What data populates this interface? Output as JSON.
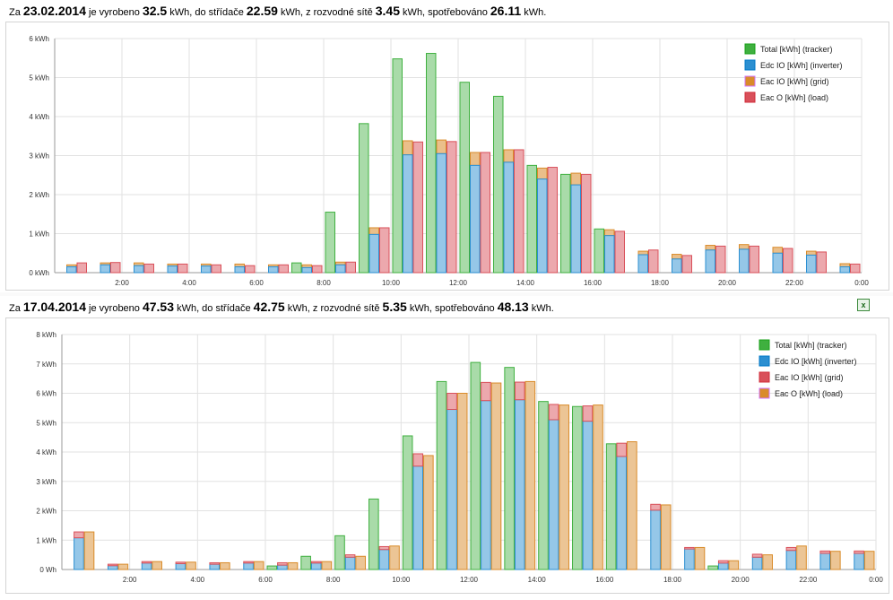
{
  "summary1": {
    "prefix": "Za ",
    "date": "23.02.2014",
    "t1": " je vyrobeno ",
    "produced": "32.5",
    "t2": " kWh, do střídače ",
    "inverter": "22.59",
    "t3": " kWh, z rozvodné sítě ",
    "grid": "3.45",
    "t4": " kWh, spotřebováno ",
    "consumed": "26.11",
    "t5": " kWh."
  },
  "summary2": {
    "prefix": "Za ",
    "date": "17.04.2014",
    "t1": " je vyrobeno ",
    "produced": "47.53",
    "t2": " kWh, do střídače ",
    "inverter": "42.75",
    "t3": " kWh, z rozvodné sítě ",
    "grid": "5.35",
    "t4": " kWh, spotřebováno ",
    "consumed": "48.13",
    "t5": " kWh."
  },
  "excel_icon": "excel-export-icon",
  "chart_data": [
    {
      "type": "bar",
      "ylim": [
        0,
        6
      ],
      "y_ticks": [
        "0 kWh",
        "1 kWh",
        "2 kWh",
        "3 kWh",
        "4 kWh",
        "5 kWh",
        "6 kWh"
      ],
      "x_ticks": [
        "2:00",
        "4:00",
        "6:00",
        "8:00",
        "10:00",
        "12:00",
        "14:00",
        "16:00",
        "18:00",
        "20:00",
        "22:00",
        "0:00"
      ],
      "grid": true,
      "legend_position": "top-right",
      "categories": [
        "1",
        "2",
        "3",
        "4",
        "5",
        "6",
        "7",
        "8",
        "9",
        "10",
        "11",
        "12",
        "13",
        "14",
        "15",
        "16",
        "17",
        "18",
        "19",
        "20",
        "21",
        "22",
        "23",
        "24"
      ],
      "series": [
        {
          "name": "Total [kWh] (tracker)",
          "color": "#3fb03f",
          "values": [
            0,
            0,
            0,
            0,
            0,
            0,
            0,
            0.25,
            1.55,
            3.82,
            5.48,
            5.62,
            4.88,
            4.52,
            2.75,
            2.52,
            1.12,
            0,
            0,
            0,
            0,
            0,
            0,
            0
          ]
        },
        {
          "name": "Edc IO [kWh] (inverter)",
          "color": "#2b8fd1",
          "values": [
            0.15,
            0.2,
            0.18,
            0.17,
            0.17,
            0.15,
            0.15,
            0.13,
            0.2,
            0.98,
            3.02,
            3.05,
            2.75,
            2.83,
            2.4,
            2.25,
            0.95,
            0.46,
            0.35,
            0.58,
            0.6,
            0.5,
            0.45,
            0.15
          ]
        },
        {
          "name": "Eac IO [kWh] (grid)",
          "color": "#d98b2a",
          "values": [
            0,
            0,
            0,
            0,
            0,
            0,
            0,
            0,
            0,
            0,
            0,
            0,
            0,
            0,
            0,
            0,
            0,
            0,
            0,
            0,
            0,
            0,
            0,
            0
          ]
        },
        {
          "name": "Eac O [kWh] (load)",
          "color": "#d9505a",
          "values": [
            0.25,
            0.26,
            0.22,
            0.22,
            0.2,
            0.18,
            0.2,
            0.18,
            0.27,
            1.15,
            3.35,
            3.36,
            3.08,
            3.15,
            2.7,
            2.52,
            1.06,
            0.58,
            0.44,
            0.68,
            0.68,
            0.62,
            0.53,
            0.22
          ]
        }
      ],
      "bar_totals": [
        0.2,
        0.25,
        0.25,
        0.22,
        0.22,
        0.22,
        0.2,
        0.2,
        0.27,
        1.15,
        3.38,
        3.4,
        3.08,
        3.15,
        2.68,
        2.55,
        1.1,
        0.55,
        0.47,
        0.7,
        0.72,
        0.65,
        0.55,
        0.23
      ]
    },
    {
      "type": "bar",
      "ylim": [
        0,
        8
      ],
      "y_ticks": [
        "0 Wh",
        "1 kWh",
        "2 kWh",
        "3 kWh",
        "4 kWh",
        "5 kWh",
        "6 kWh",
        "7 kWh",
        "8 kWh"
      ],
      "x_ticks": [
        "2:00",
        "4:00",
        "6:00",
        "8:00",
        "10:00",
        "12:00",
        "14:00",
        "16:00",
        "18:00",
        "20:00",
        "22:00",
        "0:00"
      ],
      "grid": true,
      "legend_position": "top-right",
      "categories": [
        "1",
        "2",
        "3",
        "4",
        "5",
        "6",
        "7",
        "8",
        "9",
        "10",
        "11",
        "12",
        "13",
        "14",
        "15",
        "16",
        "17",
        "18",
        "19",
        "20",
        "21",
        "22",
        "23",
        "24"
      ],
      "series": [
        {
          "name": "Total [kWh] (tracker)",
          "color": "#3fb03f",
          "values": [
            0,
            0,
            0,
            0,
            0,
            0,
            0.12,
            0.45,
            1.15,
            2.4,
            4.55,
            6.4,
            7.05,
            6.88,
            5.72,
            5.55,
            4.28,
            0,
            0,
            0.12,
            0,
            0,
            0,
            0
          ]
        },
        {
          "name": "Edc IO [kWh] (inverter)",
          "color": "#2b8fd1",
          "values": [
            1.08,
            0.13,
            0.22,
            0.2,
            0.18,
            0.22,
            0.15,
            0.22,
            0.42,
            0.68,
            3.52,
            5.45,
            5.75,
            5.78,
            5.1,
            5.05,
            3.85,
            2.02,
            0.7,
            0.22,
            0.42,
            0.65,
            0.55,
            0.55
          ]
        },
        {
          "name": "Eac IO [kWh] (grid)",
          "color": "#d9505a",
          "values": [
            0.2,
            0.05,
            0.05,
            0.05,
            0.05,
            0.05,
            0.08,
            0.05,
            0.08,
            0.1,
            0.42,
            0.55,
            0.62,
            0.6,
            0.52,
            0.52,
            0.45,
            0.2,
            0.05,
            0.08,
            0.1,
            0.1,
            0.08,
            0.08
          ]
        },
        {
          "name": "Eac O [kWh] (load)",
          "color": "#d98b2a",
          "values": [
            1.28,
            0.18,
            0.27,
            0.25,
            0.23,
            0.27,
            0.23,
            0.27,
            0.45,
            0.8,
            3.88,
            6.0,
            6.35,
            6.4,
            5.6,
            5.6,
            4.35,
            2.2,
            0.75,
            0.3,
            0.5,
            0.8,
            0.62,
            0.62
          ]
        }
      ]
    }
  ]
}
